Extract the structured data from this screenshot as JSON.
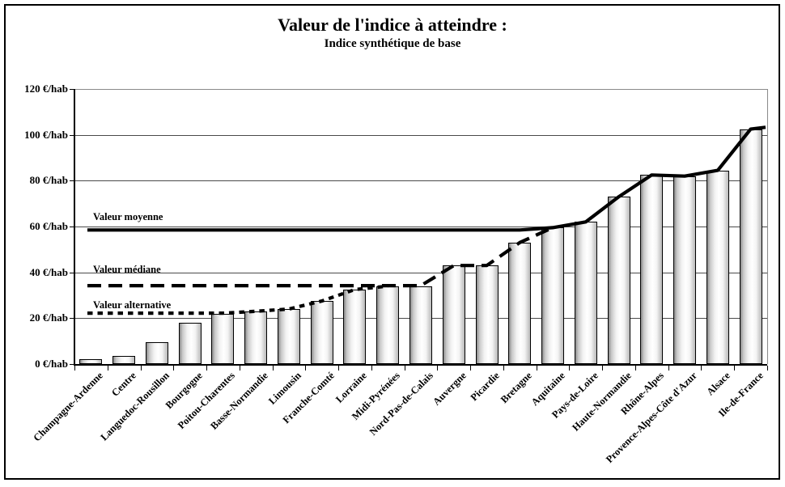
{
  "title": "Valeur de l'indice à atteindre :",
  "subtitle": "Indice synthétique de base",
  "y_axis": {
    "unit": "€/hab",
    "tick_labels": [
      "0 €/hab",
      "20 €/hab",
      "40 €/hab",
      "60 €/hab",
      "80 €/hab",
      "100 €/hab",
      "120 €/hab"
    ],
    "tick_values": [
      0,
      20,
      40,
      60,
      80,
      100,
      120
    ]
  },
  "reference_lines": [
    {
      "label": "Valeur moyenne",
      "value": 58.5,
      "style": "solid",
      "follow_from": 15,
      "follow_to": 21,
      "to_right_edge": true
    },
    {
      "label": "Valeur médiane",
      "value": 34.2,
      "style": "dashed",
      "follow_from": 11,
      "follow_to": 15,
      "to_right_edge": false
    },
    {
      "label": "Valeur alternative",
      "value": 22.2,
      "style": "dotted",
      "follow_from": 5,
      "follow_to": 10,
      "to_right_edge": false
    }
  ],
  "chart_data": {
    "type": "bar",
    "title": "Valeur de l'indice à atteindre : Indice synthétique de base",
    "xlabel": "",
    "ylabel": "€/hab",
    "ylim": [
      0,
      120
    ],
    "grid": true,
    "legend_position": "none",
    "categories": [
      "Champagne-Ardenne",
      "Centre",
      "Languedoc-Rousillon",
      "Bourgogne",
      "Poitou-Charentes",
      "Basse-Normandie",
      "Limousin",
      "Franche-Comté",
      "Lorraine",
      "Midi-Pyrénées",
      "Nord-Pas-de-Calais",
      "Auvergne",
      "Picardie",
      "Bretagne",
      "Aquitaine",
      "Pays-de-Loire",
      "Haute-Normandie",
      "Rhône-Alpes",
      "Provence-Alpes-Côte d'Azur",
      "Alsace",
      "Ile-de-France"
    ],
    "series": [
      {
        "name": "Indice synthétique de base (€/hab)",
        "values": [
          2,
          3.5,
          9.5,
          18,
          22,
          23,
          24,
          27.5,
          32.5,
          34,
          34,
          43,
          43,
          53,
          59.5,
          62,
          73,
          82.5,
          82,
          84.5,
          102.5
        ]
      }
    ],
    "annotations": [
      "Valeur moyenne ≈ 58 €/hab (ligne pleine)",
      "Valeur médiane ≈ 34 €/hab (ligne tiretée)",
      "Valeur alternative ≈ 22 €/hab (ligne pointillée)"
    ]
  },
  "colors": {
    "background": "#ffffff",
    "line": "#000000",
    "gridline": "#4a4a4a",
    "plot_top_border": "#8a8a8a",
    "bar_edge": "#000000",
    "bar_fill_dark": "#8a8a8a",
    "bar_fill_light": "#ffffff"
  }
}
